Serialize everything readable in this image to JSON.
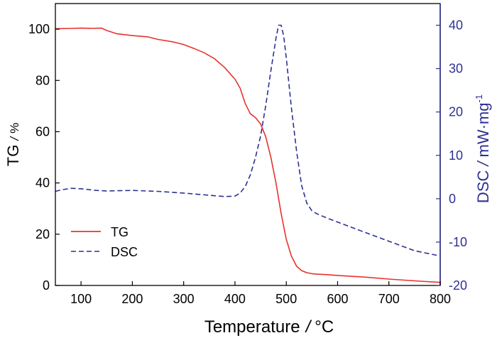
{
  "chart_data": {
    "type": "line",
    "xlabel": "Temperature",
    "xlabel_sep": "/",
    "xlabel_unit": "°C",
    "ylabel_left": "TG",
    "ylabel_left_sep": "/",
    "ylabel_left_unit": "%",
    "ylabel_right": "DSC",
    "ylabel_right_sep": "/",
    "ylabel_right_unit": "mW·mg",
    "ylabel_right_exp": "-1",
    "xlim": [
      50,
      800
    ],
    "ylim_left": [
      0,
      110
    ],
    "ylim_right": [
      -20,
      45
    ],
    "x_ticks": [
      "100",
      "200",
      "300",
      "400",
      "500",
      "600",
      "700",
      "800"
    ],
    "y_left_ticks": [
      "0",
      "20",
      "40",
      "60",
      "80",
      "100"
    ],
    "y_right_ticks": [
      "-20",
      "-10",
      "0",
      "10",
      "20",
      "30",
      "40"
    ],
    "legend_position": "bottom-left",
    "colors": {
      "tg": "#e8322e",
      "dsc": "#2e3192",
      "axis_right": "#2e3192",
      "axis": "#000000"
    },
    "series": [
      {
        "name": "TG",
        "axis": "left",
        "style": "solid",
        "x": [
          50,
          80,
          100,
          120,
          140,
          150,
          170,
          200,
          230,
          250,
          280,
          300,
          320,
          340,
          360,
          380,
          400,
          410,
          420,
          430,
          440,
          450,
          460,
          470,
          480,
          490,
          500,
          510,
          520,
          530,
          540,
          550,
          560,
          580,
          600,
          650,
          700,
          750,
          800
        ],
        "y": [
          100.2,
          100.3,
          100.4,
          100.3,
          100.4,
          99.5,
          98.2,
          97.5,
          97.0,
          96.0,
          95.0,
          94.0,
          92.5,
          90.8,
          88.5,
          85.0,
          80.5,
          77.0,
          71.0,
          67.0,
          65.5,
          63.0,
          58.0,
          50.0,
          40.0,
          28.0,
          18.0,
          11.5,
          7.5,
          5.8,
          5.0,
          4.6,
          4.4,
          4.2,
          3.9,
          3.3,
          2.5,
          1.8,
          1.2
        ]
      },
      {
        "name": "DSC",
        "axis": "right",
        "style": "dashed",
        "x": [
          50,
          60,
          80,
          100,
          130,
          150,
          200,
          250,
          300,
          350,
          380,
          400,
          410,
          420,
          430,
          440,
          450,
          460,
          470,
          480,
          485,
          490,
          495,
          500,
          510,
          520,
          530,
          540,
          550,
          560,
          580,
          600,
          650,
          700,
          750,
          800
        ],
        "y": [
          1.7,
          2.0,
          2.4,
          2.3,
          1.9,
          1.8,
          1.9,
          1.7,
          1.3,
          0.8,
          0.5,
          0.6,
          1.3,
          2.8,
          5.5,
          9.5,
          14.5,
          21.5,
          29.5,
          37.0,
          40.0,
          40.0,
          37.5,
          32.5,
          21.0,
          11.0,
          3.0,
          -1.0,
          -2.8,
          -3.5,
          -4.5,
          -5.4,
          -7.6,
          -9.8,
          -12.0,
          -13.2
        ]
      }
    ]
  }
}
